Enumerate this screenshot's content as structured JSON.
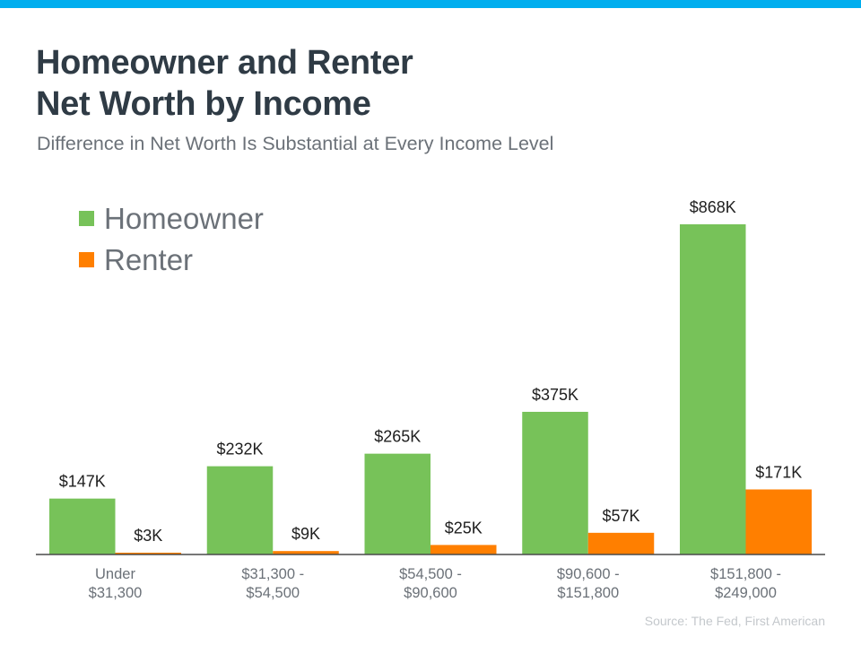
{
  "page": {
    "title_line1": "Homeowner and Renter",
    "title_line2": "Net Worth by Income",
    "subtitle": "Difference in Net Worth Is Substantial at Every Income Level",
    "source": "Source: The Fed, First American"
  },
  "colors": {
    "top_bar": "#00aeef",
    "homeowner": "#77c259",
    "renter": "#ff7f00",
    "text": "#2f3b45",
    "legend_text": "#6b7178"
  },
  "chart_data": {
    "type": "bar",
    "title": "Homeowner and Renter Net Worth by Income",
    "subtitle": "Difference in Net Worth Is Substantial at Every Income Level",
    "categories": [
      [
        "Under",
        "$31,300"
      ],
      [
        "$31,300 -",
        "$54,500"
      ],
      [
        "$54,500 -",
        "$90,600"
      ],
      [
        "$90,600 -",
        "$151,800"
      ],
      [
        "$151,800 -",
        "$249,000"
      ]
    ],
    "series": [
      {
        "name": "Homeowner",
        "color": "#77c259",
        "values": [
          147,
          232,
          265,
          375,
          868
        ],
        "labels": [
          "$147K",
          "$232K",
          "$265K",
          "$375K",
          "$868K"
        ]
      },
      {
        "name": "Renter",
        "color": "#ff7f00",
        "values": [
          3,
          9,
          25,
          57,
          171
        ],
        "labels": [
          "$3K",
          "$9K",
          "$25K",
          "$57K",
          "$171K"
        ]
      }
    ],
    "unit": "$K",
    "ylim": [
      0,
      868
    ],
    "grid": false,
    "legend_position": "top-left"
  }
}
